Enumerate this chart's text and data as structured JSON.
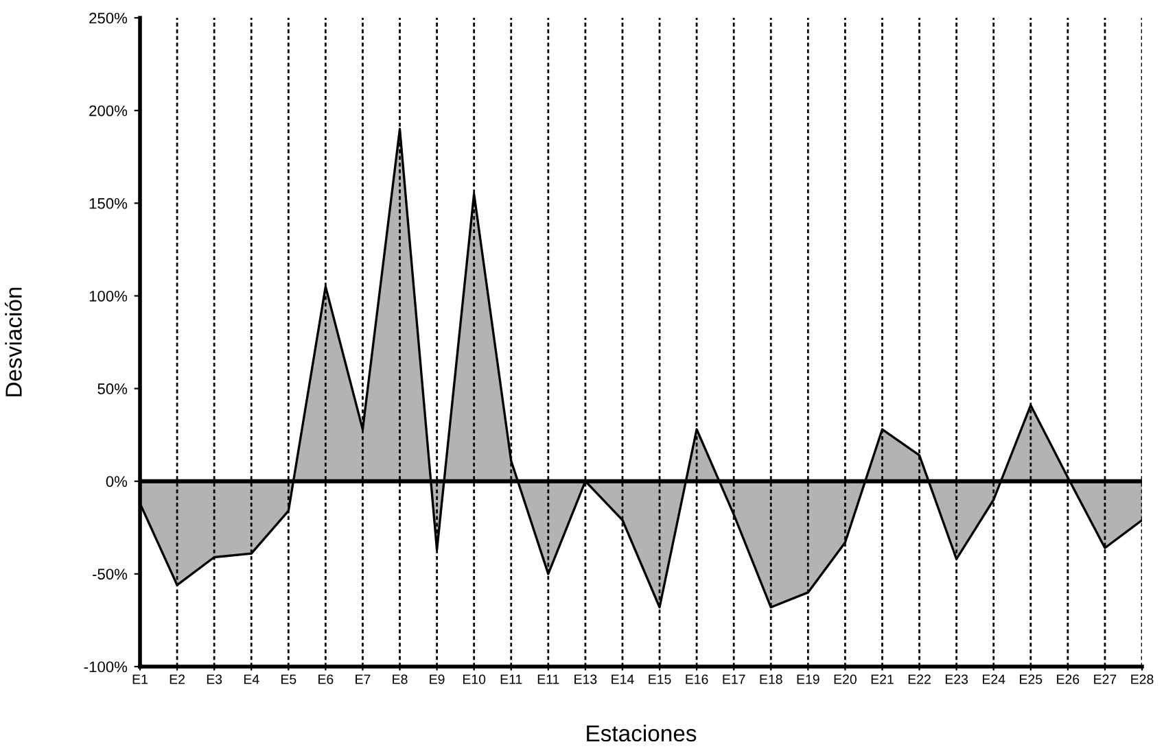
{
  "chart_data": {
    "type": "area",
    "xlabel": "Estaciones",
    "ylabel": "Desviación",
    "categories": [
      "E1",
      "E2",
      "E3",
      "E4",
      "E5",
      "E6",
      "E7",
      "E8",
      "E9",
      "E10",
      "E11",
      "E11",
      "E13",
      "E14",
      "E15",
      "E16",
      "E17",
      "E18",
      "E19",
      "E20",
      "E21",
      "E22",
      "E23",
      "E24",
      "E25",
      "E26",
      "E27",
      "E28"
    ],
    "series": [
      {
        "color": "#b3b3b3",
        "values": [
          -12,
          -56,
          -41,
          -39,
          -16,
          105,
          28,
          190,
          -37,
          155,
          11,
          -50,
          0,
          -21,
          -68,
          28,
          -18,
          -68,
          -60,
          -33,
          28,
          14,
          -42,
          -10,
          41,
          2,
          -36,
          -21
        ]
      }
    ],
    "ylim": [
      -100,
      250
    ],
    "yticks": [
      {
        "value": -100,
        "label": "-100%"
      },
      {
        "value": -50,
        "label": "-50%"
      },
      {
        "value": 0,
        "label": "0%"
      },
      {
        "value": 50,
        "label": "50%"
      },
      {
        "value": 100,
        "label": "100%"
      },
      {
        "value": 150,
        "label": "150%"
      },
      {
        "value": 200,
        "label": "200%"
      },
      {
        "value": 250,
        "label": "250%"
      }
    ],
    "grid": "x",
    "line_style": "solid",
    "ref_lines": [
      {
        "axis": "y",
        "value": 0,
        "color": "#000000"
      }
    ]
  }
}
